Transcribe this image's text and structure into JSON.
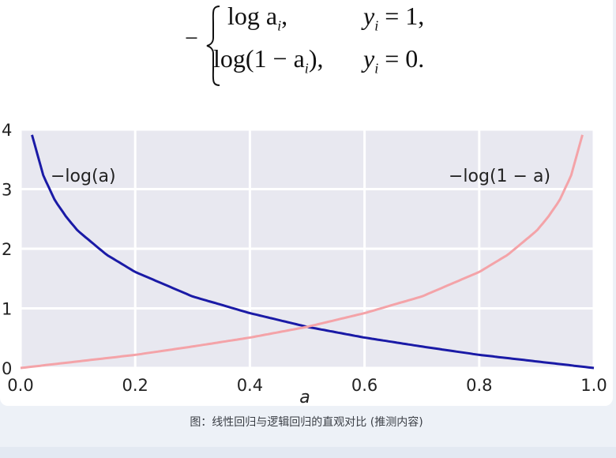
{
  "formula": {
    "minus": "−",
    "row1_expr": "log a",
    "row1_sub": "i",
    "row1_tail": ",",
    "row1_cond_var": "y",
    "row1_cond_sub": "i",
    "row1_cond_val": " = 1,",
    "row2_pre": "log(1 − a",
    "row2_sub": "i",
    "row2_tail": "),",
    "row2_cond_var": "y",
    "row2_cond_sub": "i",
    "row2_cond_val": " = 0."
  },
  "caption": "图：线性回归与逻辑回归的直观对比 (推测内容)",
  "chart_data": {
    "type": "line",
    "xlabel": "a",
    "ylabel": "",
    "xlim": [
      0.0,
      1.0
    ],
    "ylim": [
      0,
      4
    ],
    "x_ticks": [
      "0.0",
      "0.2",
      "0.4",
      "0.6",
      "0.8",
      "1.0"
    ],
    "y_ticks": [
      "0",
      "1",
      "2",
      "3",
      "4"
    ],
    "grid": true,
    "background": "#e8e8f0",
    "series": [
      {
        "name": "−log(a)",
        "color": "#1a1aa6",
        "x": [
          0.02,
          0.04,
          0.06,
          0.08,
          0.1,
          0.15,
          0.2,
          0.3,
          0.4,
          0.5,
          0.6,
          0.7,
          0.8,
          0.9,
          1.0
        ],
        "values": [
          3.91,
          3.22,
          2.81,
          2.53,
          2.3,
          1.9,
          1.61,
          1.2,
          0.92,
          0.69,
          0.51,
          0.36,
          0.22,
          0.11,
          0.0
        ]
      },
      {
        "name": "−log(1 − a)",
        "color": "#f4a3a8",
        "x": [
          0.0,
          0.1,
          0.2,
          0.3,
          0.4,
          0.5,
          0.6,
          0.7,
          0.8,
          0.85,
          0.9,
          0.92,
          0.94,
          0.96,
          0.98
        ],
        "values": [
          0.0,
          0.11,
          0.22,
          0.36,
          0.51,
          0.69,
          0.92,
          1.2,
          1.61,
          1.9,
          2.3,
          2.53,
          2.81,
          3.22,
          3.91
        ]
      }
    ],
    "annotations": [
      "−log(a)",
      "−log(1 − a)"
    ]
  }
}
